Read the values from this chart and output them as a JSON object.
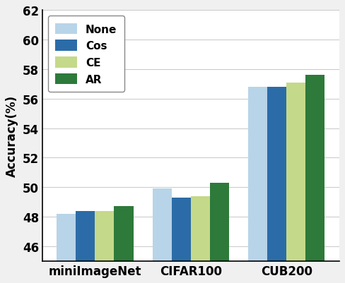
{
  "categories": [
    "miniImageNet",
    "CIFAR100",
    "CUB200"
  ],
  "series": {
    "None": [
      48.2,
      49.9,
      56.8
    ],
    "Cos": [
      48.4,
      49.3,
      56.8
    ],
    "CE": [
      48.4,
      49.4,
      57.1
    ],
    "AR": [
      48.7,
      50.3,
      57.6
    ]
  },
  "colors": {
    "None": "#b8d4e8",
    "Cos": "#2b6ca8",
    "CE": "#c5d98a",
    "AR": "#2d7a3a"
  },
  "ylabel": "Accuracy(%)",
  "ylim": [
    45,
    62
  ],
  "yticks": [
    46,
    48,
    50,
    52,
    54,
    56,
    58,
    60,
    62
  ],
  "bar_width": 0.2,
  "legend_labels": [
    "None",
    "Cos",
    "CE",
    "AR"
  ],
  "tick_fontsize": 12,
  "label_fontsize": 12,
  "legend_fontsize": 11,
  "bg_color": "#f0f0f0",
  "plot_bg_color": "#ffffff"
}
